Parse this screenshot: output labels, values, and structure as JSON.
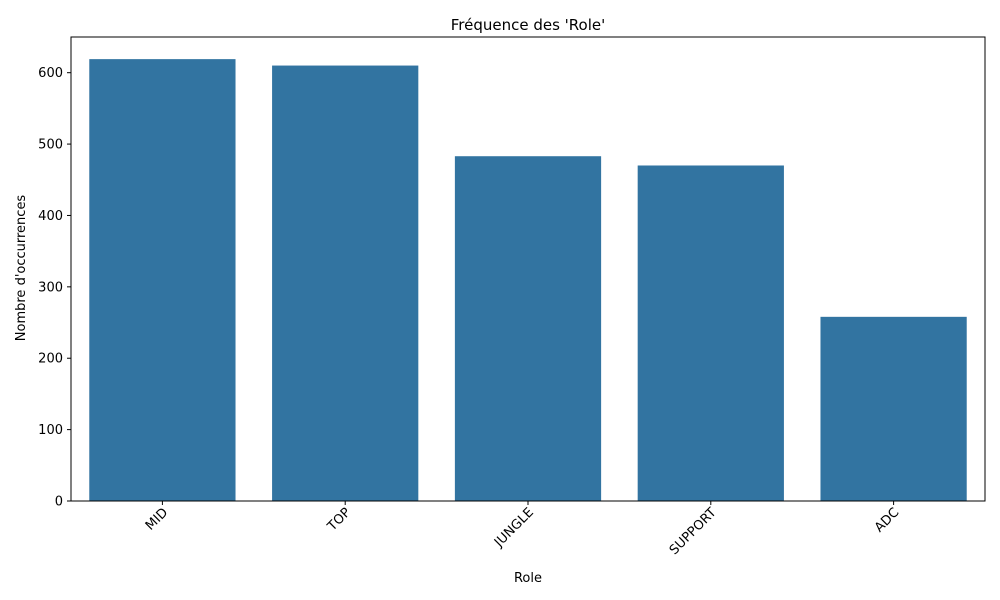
{
  "chart_data": {
    "type": "bar",
    "title": "Fréquence des 'Role'",
    "xlabel": "Role",
    "ylabel": "Nombre d'occurrences",
    "categories": [
      "MID",
      "TOP",
      "JUNGLE",
      "SUPPORT",
      "ADC"
    ],
    "values": [
      619,
      610,
      483,
      470,
      258
    ],
    "ylim": [
      0,
      650
    ],
    "yticks": [
      0,
      100,
      200,
      300,
      400,
      500,
      600
    ],
    "grid": false,
    "legend": "none",
    "bar_color": "#3274a1",
    "x_tick_rotation": 45
  }
}
